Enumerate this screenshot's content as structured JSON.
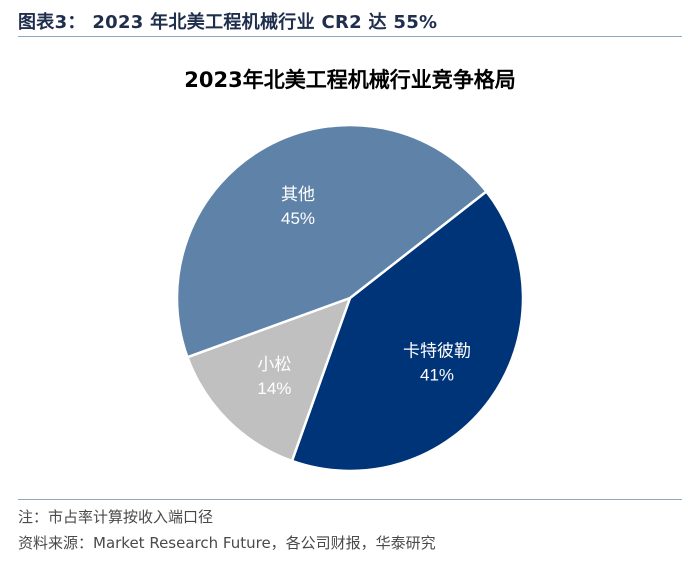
{
  "header": {
    "figure_label": "图表3：",
    "figure_title": "2023 年北美工程机械行业 CR2 达 55%"
  },
  "chart_data": {
    "type": "pie",
    "title": "2023年北美工程机械行业竞争格局",
    "start": "top-right",
    "direction": "clockwise",
    "slices": [
      {
        "label": "卡特彼勒",
        "value": 41,
        "display": "41%",
        "color": "#003478",
        "label_color": "#ffffff"
      },
      {
        "label": "小松",
        "value": 14,
        "display": "14%",
        "color": "#c0c0c0",
        "label_color": "#ffffff"
      },
      {
        "label": "其他",
        "value": 45,
        "display": "45%",
        "color": "#5f82a9",
        "label_color": "#ffffff"
      }
    ]
  },
  "footer": {
    "note": "注：市占率计算按收入端口径",
    "source": "资料来源：Market Research Future，各公司财报，华泰研究"
  }
}
